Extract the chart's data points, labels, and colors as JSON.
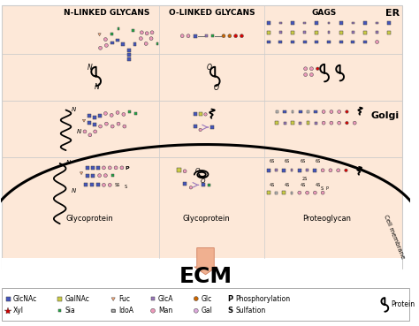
{
  "bg_color": "#fde8d8",
  "title_ecm": "ECM",
  "header_n_linked": "N-LINKED GLYCANS",
  "header_o_linked": "O-LINKED GLYCANS",
  "header_gags": "GAGS",
  "label_er": "ER",
  "label_golgi": "Golgi",
  "label_cell_membrane": "Cell membrane",
  "label_glycoprotein1": "Glycoprotein",
  "label_glycoprotein2": "Glycoprotein",
  "label_proteoglycan": "Proteoglycan",
  "colors": {
    "glcnac": "#4455bb",
    "galnac": "#cccc44",
    "fuc": "#ffaa77",
    "glca": "#9977bb",
    "glc": "#cc6600",
    "xyl": "#cc0000",
    "sia": "#22aa44",
    "idoa": "#bbbbbb",
    "man": "#ee99bb",
    "gal": "#ddaadd",
    "red_dot": "#dd0000",
    "arrow_color": "#f0b090",
    "outline": "#444444"
  }
}
